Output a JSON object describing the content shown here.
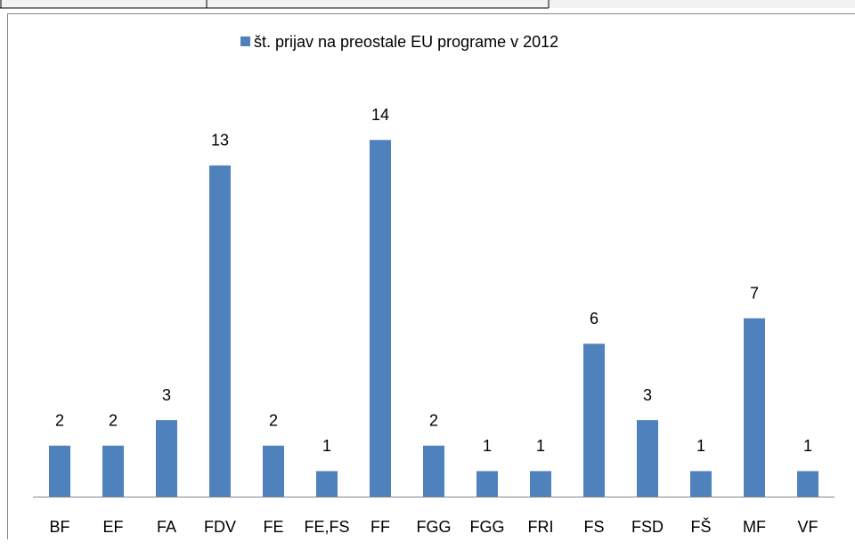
{
  "chart_data": {
    "type": "bar",
    "legend": "št. prijav na preostale EU programe v 2012",
    "categories": [
      "BF",
      "EF",
      "FA",
      "FDV",
      "FE",
      "FE,FS",
      "FF",
      "FGG",
      "FGG",
      "FRI",
      "FS",
      "FSD",
      "FŠ",
      "MF",
      "VF"
    ],
    "values": [
      2,
      2,
      3,
      13,
      2,
      1,
      14,
      2,
      1,
      1,
      6,
      3,
      1,
      7,
      1
    ],
    "color": "#4f81bd",
    "ylim": [
      0,
      16
    ]
  }
}
